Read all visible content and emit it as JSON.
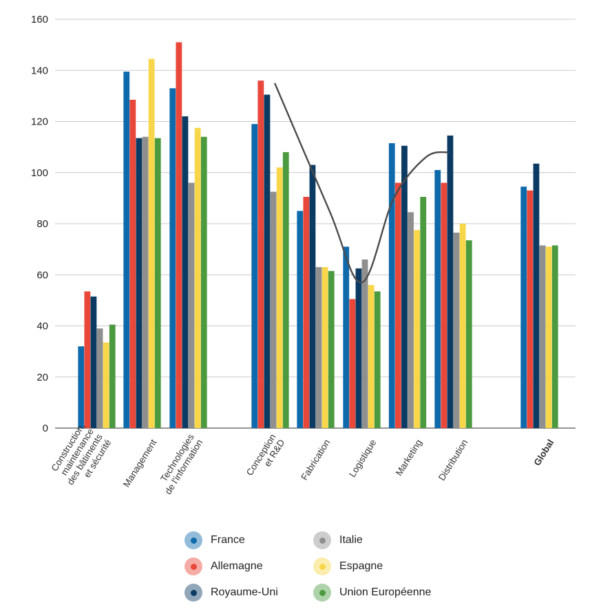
{
  "chart_data": {
    "type": "bar",
    "categories": [
      [
        "Construction,",
        "maintenance",
        "des bâtiments",
        "et sécurité"
      ],
      [
        "Management"
      ],
      [
        "Technologies",
        "de l'information"
      ],
      [
        "Conception",
        "et R&D"
      ],
      [
        "Fabrication"
      ],
      [
        "Logistique"
      ],
      [
        "Marketing"
      ],
      [
        "Distribution"
      ],
      [
        "Global"
      ]
    ],
    "bold_categories": [
      "Global"
    ],
    "series": [
      {
        "name": "France",
        "color": "#0f6aac",
        "values": [
          32,
          139.5,
          133,
          119,
          85,
          71,
          111.5,
          101,
          94.5
        ]
      },
      {
        "name": "Allemagne",
        "color": "#e8473a",
        "values": [
          53.5,
          128.5,
          151,
          136,
          90.5,
          50.5,
          96,
          96,
          93
        ]
      },
      {
        "name": "Royaume-Uni",
        "color": "#0b3a63",
        "values": [
          51.5,
          113.5,
          122,
          130.5,
          103,
          62.5,
          110.5,
          114.5,
          103.5
        ]
      },
      {
        "name": "Italie",
        "color": "#8f8f8f",
        "values": [
          39,
          114,
          96,
          92.5,
          63,
          66,
          84.5,
          76.5,
          71.5
        ]
      },
      {
        "name": "Espagne",
        "color": "#f7d64a",
        "values": [
          33.5,
          144.5,
          117.5,
          102,
          63,
          56,
          77.5,
          80,
          71
        ]
      },
      {
        "name": "Union Européenne",
        "color": "#4c9a3f",
        "values": [
          40.5,
          113.5,
          114,
          108,
          61.5,
          53.5,
          90.5,
          73.5,
          71.5
        ]
      }
    ],
    "ylim": [
      0,
      160
    ],
    "yticks": [
      "0",
      "20",
      "40",
      "60",
      "80",
      "100",
      "120",
      "140",
      "160"
    ],
    "grid": true,
    "trend_curve": {
      "color": "#4a4a4a",
      "points": [
        [
          3.1,
          135
        ],
        [
          4.3,
          85
        ],
        [
          5.0,
          57
        ],
        [
          5.7,
          90
        ],
        [
          6.4,
          106
        ],
        [
          6.9,
          108
        ]
      ]
    },
    "legend": {
      "placement": "bottom",
      "columns": [
        [
          "France",
          "Allemagne",
          "Royaume-Uni"
        ],
        [
          "Italie",
          "Espagne",
          "Union Européenne"
        ]
      ]
    }
  }
}
